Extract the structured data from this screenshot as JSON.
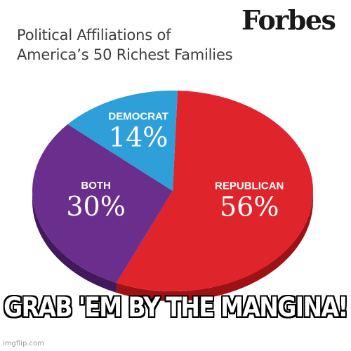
{
  "brand": "Forbes",
  "title_lines": [
    "Political Affiliations of",
    "America’s 50 Richest Families"
  ],
  "caption": "GRAB 'EM BY THE MANGINA!",
  "watermark": "imgflip.com",
  "chart_data": {
    "type": "pie",
    "title": "Political Affiliations of America’s 50 Richest Families",
    "slices": [
      {
        "label": "REPUBLICAN",
        "value": 56,
        "value_label": "56%",
        "color": "#e0242b",
        "side_color": "#9e1216"
      },
      {
        "label": "BOTH",
        "value": 30,
        "value_label": "30%",
        "color": "#6a2e8d",
        "side_color": "#41195c"
      },
      {
        "label": "DEMOCRAT",
        "value": 14,
        "value_label": "14%",
        "color": "#2e9fd8",
        "side_color": "#1c6d98"
      }
    ]
  }
}
